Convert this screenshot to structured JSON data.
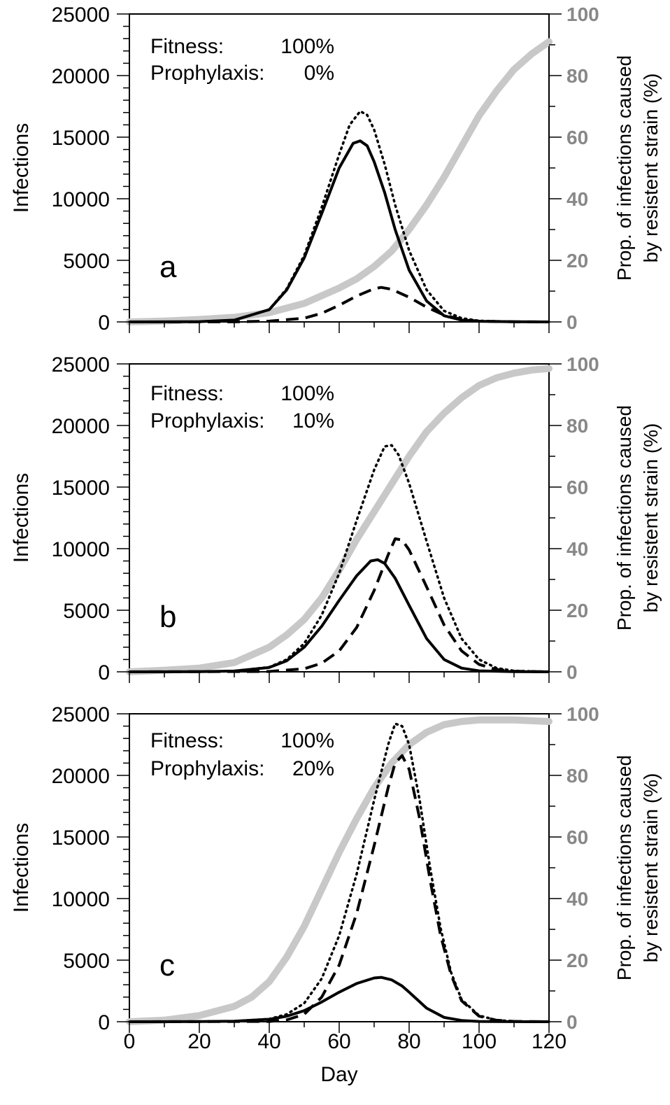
{
  "figure": {
    "xlabel": "Day",
    "x_ticks": [
      "0",
      "20",
      "40",
      "60",
      "80",
      "100",
      "120"
    ],
    "left_ticks": [
      "0",
      "5000",
      "10000",
      "15000",
      "20000",
      "25000"
    ],
    "right_ticks": [
      "0",
      "20",
      "40",
      "60",
      "80",
      "100"
    ],
    "ylabel_left": "Infections",
    "ylabel_right_line1": "Prop. of infections caused",
    "ylabel_right_line2": "by resistent strain (%)"
  },
  "colors": {
    "axis": "#000000",
    "proportion_line": "#c8c8c8",
    "right_tick_labels": "#888888"
  },
  "chart_data": [
    {
      "type": "line",
      "panel_label": "a",
      "fitness_label": "Fitness:",
      "fitness_value": "100%",
      "prophylaxis_label": "Prophylaxis:",
      "prophylaxis_value": "0%",
      "xlim": [
        0,
        120
      ],
      "ylim_left": [
        0,
        25000
      ],
      "ylim_right": [
        0,
        100
      ],
      "series": [
        {
          "style": "solid",
          "axis": "left",
          "points": [
            [
              0,
              0
            ],
            [
              20,
              20
            ],
            [
              30,
              150
            ],
            [
              40,
              1000
            ],
            [
              45,
              2600
            ],
            [
              50,
              5200
            ],
            [
              55,
              8800
            ],
            [
              60,
              12500
            ],
            [
              64,
              14500
            ],
            [
              66,
              14700
            ],
            [
              68,
              14300
            ],
            [
              70,
              13000
            ],
            [
              73,
              10500
            ],
            [
              76,
              7500
            ],
            [
              80,
              4200
            ],
            [
              85,
              1700
            ],
            [
              90,
              500
            ],
            [
              95,
              150
            ],
            [
              100,
              50
            ],
            [
              110,
              10
            ],
            [
              120,
              0
            ]
          ]
        },
        {
          "style": "dotted",
          "axis": "left",
          "points": [
            [
              0,
              0
            ],
            [
              20,
              20
            ],
            [
              30,
              150
            ],
            [
              40,
              1000
            ],
            [
              45,
              2700
            ],
            [
              50,
              5400
            ],
            [
              55,
              9300
            ],
            [
              60,
              13600
            ],
            [
              63,
              16000
            ],
            [
              66,
              17100
            ],
            [
              68,
              16800
            ],
            [
              70,
              15600
            ],
            [
              73,
              12800
            ],
            [
              76,
              9500
            ],
            [
              80,
              5800
            ],
            [
              85,
              2600
            ],
            [
              90,
              900
            ],
            [
              95,
              300
            ],
            [
              100,
              90
            ],
            [
              110,
              15
            ],
            [
              120,
              0
            ]
          ]
        },
        {
          "style": "dashed",
          "axis": "left",
          "points": [
            [
              0,
              0
            ],
            [
              30,
              5
            ],
            [
              40,
              60
            ],
            [
              50,
              300
            ],
            [
              55,
              700
            ],
            [
              60,
              1350
            ],
            [
              65,
              2100
            ],
            [
              70,
              2700
            ],
            [
              72,
              2800
            ],
            [
              75,
              2650
            ],
            [
              80,
              2000
            ],
            [
              85,
              1200
            ],
            [
              90,
              550
            ],
            [
              95,
              200
            ],
            [
              100,
              60
            ],
            [
              110,
              10
            ],
            [
              120,
              0
            ]
          ]
        },
        {
          "style": "thick",
          "axis": "right",
          "points": [
            [
              0,
              0
            ],
            [
              10,
              0.3
            ],
            [
              20,
              0.8
            ],
            [
              30,
              1.5
            ],
            [
              40,
              3
            ],
            [
              50,
              6
            ],
            [
              60,
              11
            ],
            [
              65,
              14
            ],
            [
              70,
              18
            ],
            [
              75,
              23
            ],
            [
              80,
              30
            ],
            [
              85,
              38
            ],
            [
              90,
              47
            ],
            [
              95,
              57
            ],
            [
              100,
              67
            ],
            [
              105,
              75
            ],
            [
              110,
              82
            ],
            [
              115,
              87
            ],
            [
              120,
              91
            ]
          ]
        }
      ]
    },
    {
      "type": "line",
      "panel_label": "b",
      "fitness_label": "Fitness:",
      "fitness_value": "100%",
      "prophylaxis_label": "Prophylaxis:",
      "prophylaxis_value": "10%",
      "xlim": [
        0,
        120
      ],
      "ylim_left": [
        0,
        25000
      ],
      "ylim_right": [
        0,
        100
      ],
      "series": [
        {
          "style": "solid",
          "axis": "left",
          "points": [
            [
              0,
              0
            ],
            [
              20,
              10
            ],
            [
              30,
              60
            ],
            [
              40,
              350
            ],
            [
              45,
              900
            ],
            [
              50,
              2000
            ],
            [
              55,
              3700
            ],
            [
              60,
              5800
            ],
            [
              65,
              7800
            ],
            [
              69,
              9000
            ],
            [
              71,
              9100
            ],
            [
              73,
              8800
            ],
            [
              76,
              7600
            ],
            [
              80,
              5400
            ],
            [
              85,
              2700
            ],
            [
              90,
              1000
            ],
            [
              95,
              300
            ],
            [
              100,
              80
            ],
            [
              110,
              10
            ],
            [
              120,
              0
            ]
          ]
        },
        {
          "style": "dotted",
          "axis": "left",
          "points": [
            [
              0,
              0
            ],
            [
              20,
              10
            ],
            [
              30,
              70
            ],
            [
              40,
              380
            ],
            [
              45,
              1000
            ],
            [
              50,
              2300
            ],
            [
              55,
              4600
            ],
            [
              60,
              8000
            ],
            [
              65,
              12300
            ],
            [
              70,
              16400
            ],
            [
              73,
              18300
            ],
            [
              75,
              18400
            ],
            [
              77,
              17600
            ],
            [
              80,
              15300
            ],
            [
              85,
              10600
            ],
            [
              90,
              6000
            ],
            [
              95,
              2700
            ],
            [
              100,
              1000
            ],
            [
              105,
              300
            ],
            [
              110,
              80
            ],
            [
              120,
              0
            ]
          ]
        },
        {
          "style": "dashed",
          "axis": "left",
          "points": [
            [
              0,
              0
            ],
            [
              40,
              30
            ],
            [
              50,
              250
            ],
            [
              55,
              700
            ],
            [
              60,
              1700
            ],
            [
              65,
              3600
            ],
            [
              70,
              6600
            ],
            [
              74,
              9500
            ],
            [
              76,
              10800
            ],
            [
              78,
              10700
            ],
            [
              80,
              9900
            ],
            [
              85,
              6900
            ],
            [
              90,
              3800
            ],
            [
              95,
              1700
            ],
            [
              100,
              600
            ],
            [
              105,
              180
            ],
            [
              110,
              50
            ],
            [
              120,
              0
            ]
          ]
        },
        {
          "style": "thick",
          "axis": "right",
          "points": [
            [
              0,
              0
            ],
            [
              10,
              0.5
            ],
            [
              20,
              1.2
            ],
            [
              30,
              3
            ],
            [
              40,
              8
            ],
            [
              45,
              12
            ],
            [
              50,
              17
            ],
            [
              55,
              24
            ],
            [
              60,
              33
            ],
            [
              65,
              43
            ],
            [
              70,
              52
            ],
            [
              75,
              61
            ],
            [
              80,
              70
            ],
            [
              85,
              78
            ],
            [
              90,
              84
            ],
            [
              95,
              89
            ],
            [
              100,
              93
            ],
            [
              105,
              95.5
            ],
            [
              110,
              97
            ],
            [
              115,
              98
            ],
            [
              120,
              98.5
            ]
          ]
        }
      ]
    },
    {
      "type": "line",
      "panel_label": "c",
      "fitness_label": "Fitness:",
      "fitness_value": "100%",
      "prophylaxis_label": "Prophylaxis:",
      "prophylaxis_value": "20%",
      "xlim": [
        0,
        120
      ],
      "ylim_left": [
        0,
        25000
      ],
      "ylim_right": [
        0,
        100
      ],
      "series": [
        {
          "style": "solid",
          "axis": "left",
          "points": [
            [
              0,
              0
            ],
            [
              20,
              10
            ],
            [
              30,
              40
            ],
            [
              40,
              200
            ],
            [
              45,
              450
            ],
            [
              50,
              900
            ],
            [
              55,
              1600
            ],
            [
              60,
              2400
            ],
            [
              65,
              3100
            ],
            [
              70,
              3550
            ],
            [
              72,
              3600
            ],
            [
              75,
              3400
            ],
            [
              78,
              2900
            ],
            [
              80,
              2400
            ],
            [
              85,
              1100
            ],
            [
              90,
              350
            ],
            [
              95,
              100
            ],
            [
              100,
              25
            ],
            [
              110,
              5
            ],
            [
              120,
              0
            ]
          ]
        },
        {
          "style": "dotted",
          "axis": "left",
          "points": [
            [
              0,
              0
            ],
            [
              20,
              10
            ],
            [
              30,
              40
            ],
            [
              40,
              220
            ],
            [
              45,
              600
            ],
            [
              50,
              1500
            ],
            [
              55,
              3500
            ],
            [
              60,
              7000
            ],
            [
              65,
              12000
            ],
            [
              70,
              18000
            ],
            [
              74,
              22500
            ],
            [
              76,
              24200
            ],
            [
              78,
              24000
            ],
            [
              80,
              22500
            ],
            [
              83,
              18000
            ],
            [
              86,
              12500
            ],
            [
              89,
              7600
            ],
            [
              92,
              4000
            ],
            [
              95,
              1800
            ],
            [
              100,
              500
            ],
            [
              105,
              130
            ],
            [
              110,
              30
            ],
            [
              120,
              0
            ]
          ]
        },
        {
          "style": "dashed",
          "axis": "left",
          "points": [
            [
              0,
              0
            ],
            [
              40,
              20
            ],
            [
              45,
              150
            ],
            [
              50,
              600
            ],
            [
              55,
              2000
            ],
            [
              60,
              4600
            ],
            [
              65,
              8800
            ],
            [
              70,
              14300
            ],
            [
              74,
              19000
            ],
            [
              76,
              21000
            ],
            [
              78,
              21600
            ],
            [
              80,
              20500
            ],
            [
              83,
              16500
            ],
            [
              86,
              11500
            ],
            [
              89,
              7000
            ],
            [
              92,
              3800
            ],
            [
              95,
              1700
            ],
            [
              100,
              450
            ],
            [
              105,
              120
            ],
            [
              110,
              30
            ],
            [
              120,
              0
            ]
          ]
        },
        {
          "style": "thick",
          "axis": "right",
          "points": [
            [
              0,
              0
            ],
            [
              10,
              0.5
            ],
            [
              20,
              2
            ],
            [
              30,
              5
            ],
            [
              35,
              8
            ],
            [
              40,
              13
            ],
            [
              45,
              21
            ],
            [
              50,
              31
            ],
            [
              55,
              43
            ],
            [
              60,
              55
            ],
            [
              65,
              66
            ],
            [
              70,
              76
            ],
            [
              75,
              84
            ],
            [
              80,
              90
            ],
            [
              85,
              94
            ],
            [
              90,
              96.5
            ],
            [
              95,
              97.5
            ],
            [
              100,
              98
            ],
            [
              110,
              98
            ],
            [
              120,
              97.5
            ]
          ]
        }
      ]
    }
  ]
}
